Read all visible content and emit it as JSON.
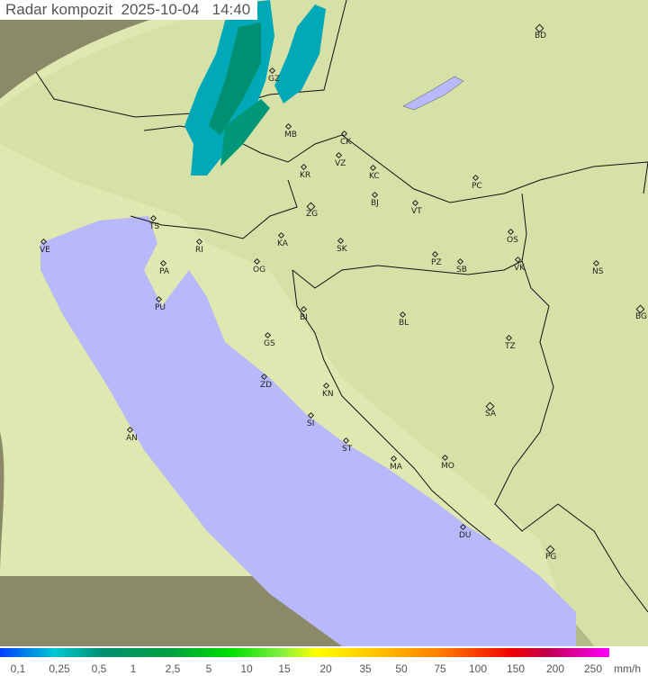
{
  "title": "Radar kompozit  2025-10-04   14:40",
  "colors": {
    "sea": "#b8b8ff",
    "land": "#c8d8a0",
    "outside": "#7a7a60",
    "coverage": "#e2ecb8",
    "rain_light": "#00b0c0",
    "rain_dark": "#008868"
  },
  "cities": [
    "BD",
    "GZ",
    "MB",
    "CK",
    "VZ",
    "KR",
    "KC",
    "PC",
    "BJ",
    "VT",
    "ZG",
    "TS",
    "VE",
    "OS",
    "KA",
    "SK",
    "RI",
    "PA",
    "OG",
    "PZ",
    "SB",
    "VK",
    "NS",
    "PU",
    "BG",
    "BI",
    "BL",
    "GS",
    "TZ",
    "ZD",
    "KN",
    "SA",
    "SI",
    "AN",
    "ST",
    "MA",
    "MO",
    "DU",
    "PG"
  ],
  "legend": {
    "ticks": [
      "0,1",
      "0,25",
      "0,5",
      "1",
      "2,5",
      "5",
      "10",
      "15",
      "20",
      "35",
      "50",
      "75",
      "100",
      "150",
      "200",
      "250"
    ],
    "unit": "mm/h"
  }
}
